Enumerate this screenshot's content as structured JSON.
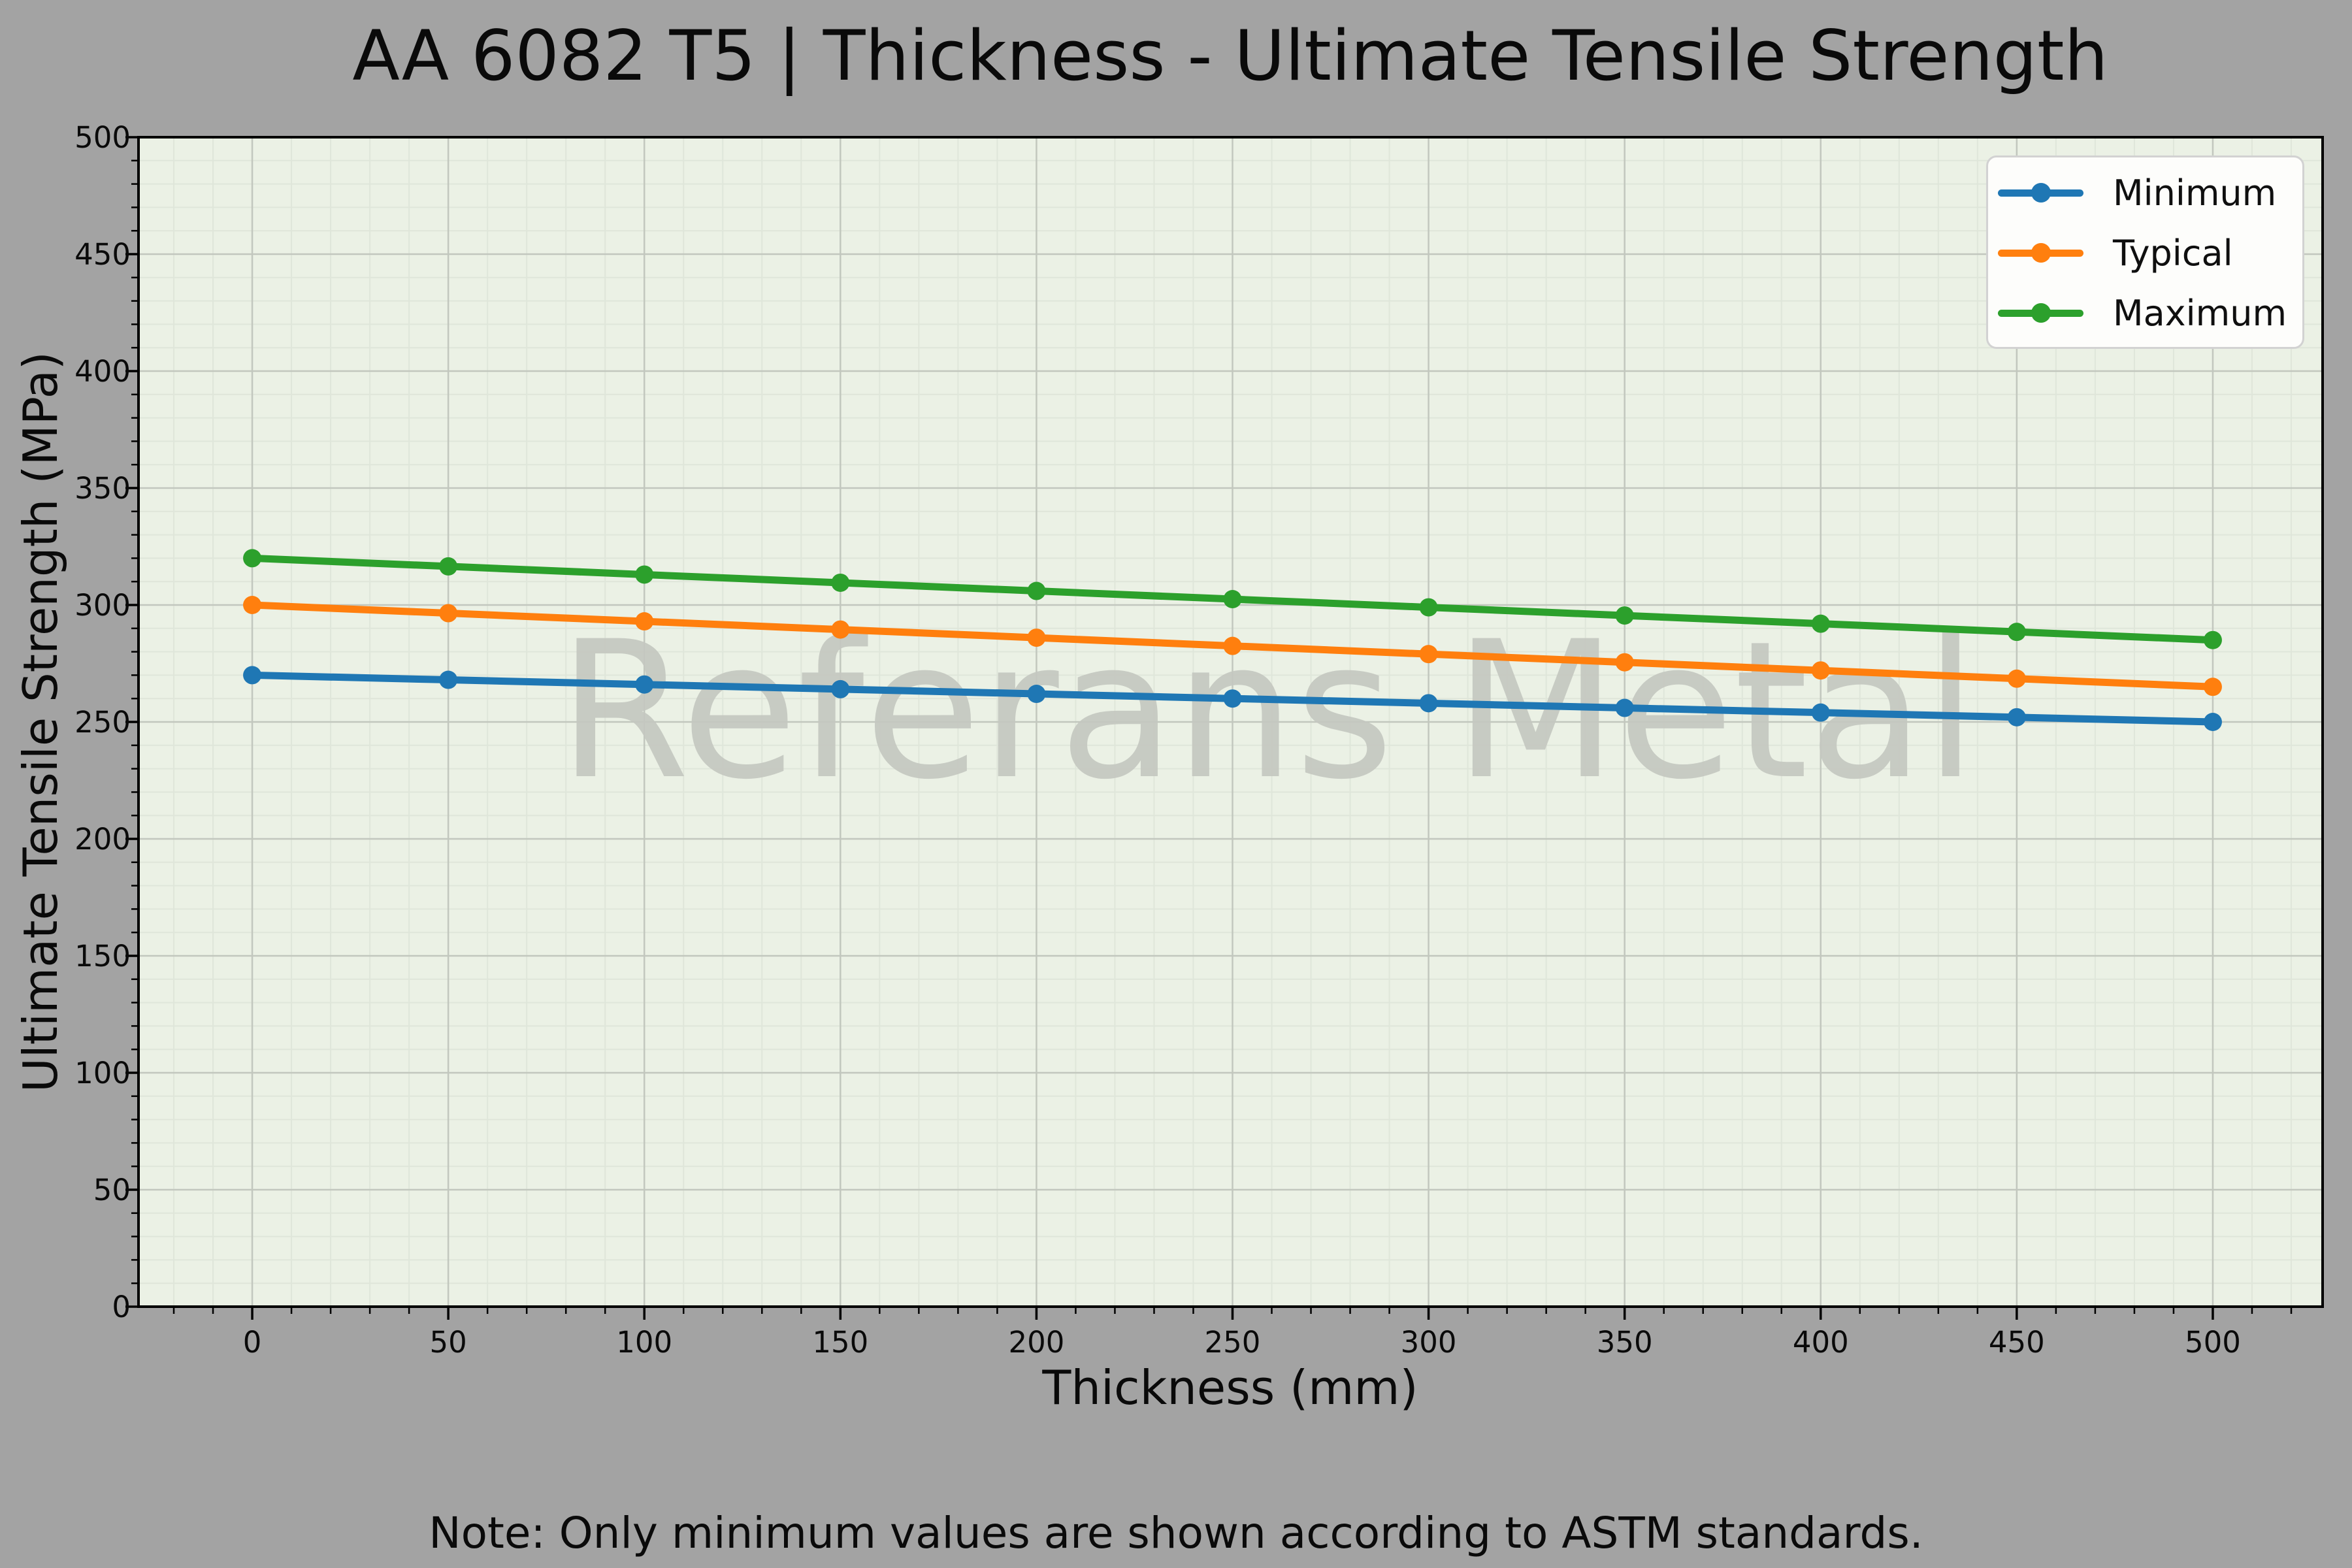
{
  "figure": {
    "title": "AA 6082 T5 | Thickness - Ultimate Tensile Strength",
    "note": "Note: Only minimum values are shown according to ASTM standards.",
    "watermark": "Referans Metal",
    "background_color": "#a3a3a3",
    "plot_background_color": "#ebf1e5"
  },
  "chart_data": {
    "type": "line",
    "title": "AA 6082 T5 | Thickness - Ultimate Tensile Strength",
    "xlabel": "Thickness (mm)",
    "ylabel": "Ultimate Tensile Strength (MPa)",
    "x": [
      0,
      50,
      100,
      150,
      200,
      250,
      300,
      350,
      400,
      450,
      500
    ],
    "series": [
      {
        "name": "Minimum",
        "color": "#1f77b4",
        "values": [
          270,
          268,
          266,
          264,
          262,
          260,
          258,
          256,
          254,
          252,
          250
        ]
      },
      {
        "name": "Typical",
        "color": "#ff7f0e",
        "values": [
          300,
          296.5,
          293,
          289.5,
          286,
          282.5,
          279,
          275.5,
          272,
          268.5,
          265
        ]
      },
      {
        "name": "Maximum",
        "color": "#2ca02c",
        "values": [
          320,
          316.5,
          313,
          309.5,
          306,
          302.5,
          299,
          295.5,
          292,
          288.5,
          285
        ]
      }
    ],
    "xlim": [
      -29,
      528
    ],
    "ylim": [
      0,
      500
    ],
    "x_ticks": [
      0,
      50,
      100,
      150,
      200,
      250,
      300,
      350,
      400,
      450,
      500
    ],
    "y_ticks": [
      0,
      50,
      100,
      150,
      200,
      250,
      300,
      350,
      400,
      450,
      500
    ],
    "minor_tick_step": 10,
    "grid": true,
    "legend_position": "upper right"
  },
  "style": {
    "grid_major_color": "#c2c7be",
    "grid_minor_color": "#dfe6da",
    "spine_color": "#000000",
    "tick_color": "#000000",
    "text_color": "#0a0a0a",
    "watermark_color": "#c5c8c1",
    "legend_background": "#fdfdfb",
    "legend_border": "#d2d2d2"
  }
}
